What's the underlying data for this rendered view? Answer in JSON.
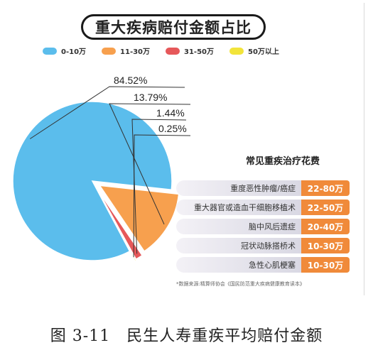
{
  "chart_data": {
    "type": "pie",
    "title": "重大疾病赔付金额占比",
    "legend": [
      "0-10万",
      "11-30万",
      "31-50万",
      "50万以上"
    ],
    "slices": [
      {
        "label": "0-10万",
        "value": 84.52,
        "display": "84.52%"
      },
      {
        "label": "11-30万",
        "value": 13.79,
        "display": "13.79%"
      },
      {
        "label": "31-50万",
        "value": 1.44,
        "display": "1.44%"
      },
      {
        "label": "50万以上",
        "value": 0.25,
        "display": "0.25%"
      }
    ],
    "colors": [
      "#5bbdec",
      "#f7a04e",
      "#e6585a",
      "#f2e43a"
    ]
  },
  "panel": {
    "title": "常见重疾治疗花费",
    "rows": [
      {
        "name": "重度恶性肿瘤/癌症",
        "cost": "22-80万"
      },
      {
        "name": "重大器官或造血干细胞移植术",
        "cost": "22-50万"
      },
      {
        "name": "脑中风后遗症",
        "cost": "20-40万"
      },
      {
        "name": "冠状动脉搭桥术",
        "cost": "10-30万"
      },
      {
        "name": "急性心肌梗塞",
        "cost": "10-30万"
      }
    ]
  },
  "source": "*数据来源:精算师协会《国民防范重大疾病健康教育读本》",
  "caption": "图 3-11　民生人寿重疾平均赔付金额"
}
